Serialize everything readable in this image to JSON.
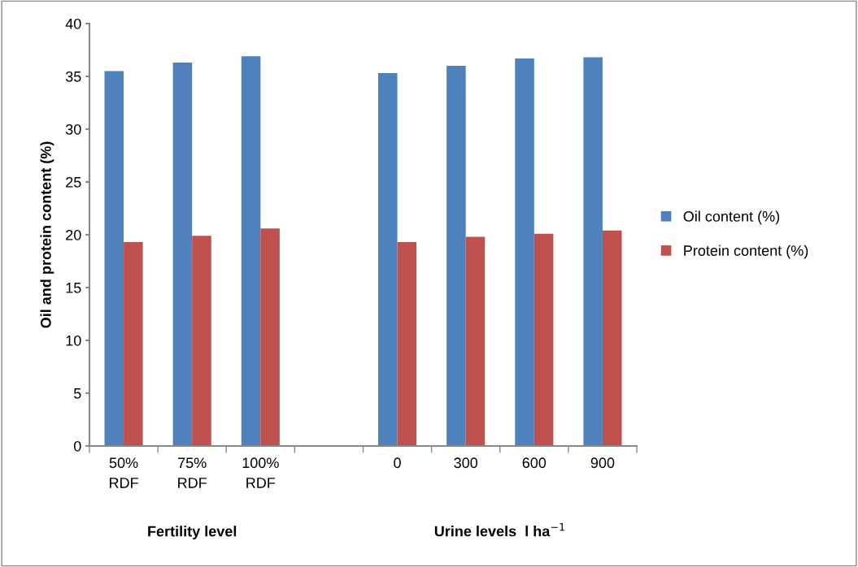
{
  "chart_data": {
    "type": "bar",
    "ylabel": "Oil and protein content (%)",
    "categories": [
      "50%\nRDF",
      "75%\nRDF",
      "100%\nRDF",
      null,
      "0",
      "300",
      "600",
      "900"
    ],
    "series": [
      {
        "name": "Oil content (%)",
        "color": "#4f81bd",
        "values": [
          35.5,
          36.3,
          36.9,
          null,
          35.3,
          36.0,
          36.7,
          36.8
        ]
      },
      {
        "name": "Protein content (%)",
        "color": "#c0504d",
        "values": [
          19.3,
          19.9,
          20.6,
          null,
          19.3,
          19.8,
          20.1,
          20.4
        ]
      }
    ],
    "ylim": [
      0,
      40
    ],
    "yticks": [
      0,
      5,
      10,
      15,
      20,
      25,
      30,
      35,
      40
    ],
    "grid": false,
    "legend": "right",
    "annotations": [
      "Fertility level",
      "Urine levels  l ha$^{−1}$"
    ]
  }
}
